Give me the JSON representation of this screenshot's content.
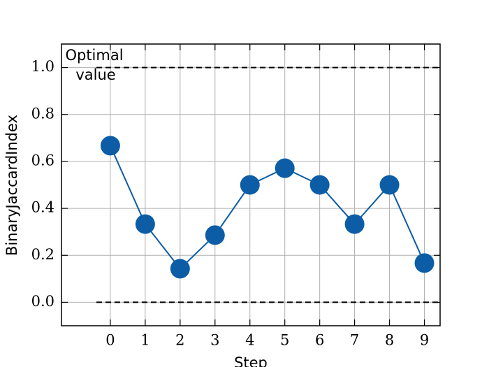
{
  "chart_data": {
    "type": "line",
    "x_label": "Step",
    "y_label": "BinaryJaccardIndex",
    "x": [
      0,
      1,
      2,
      3,
      4,
      5,
      6,
      7,
      8,
      9
    ],
    "series": [
      {
        "color": "#0C5DA5",
        "values": [
          0.667,
          0.333,
          0.143,
          0.286,
          0.5,
          0.571,
          0.5,
          0.333,
          0.5,
          0.167
        ]
      }
    ],
    "xlim": [
      -1.4,
      9.45
    ],
    "ylim": [
      -0.1,
      1.1
    ],
    "xticks": [
      0,
      1,
      2,
      3,
      4,
      5,
      6,
      7,
      8,
      9
    ],
    "yticks": [
      {
        "value": 0,
        "label": "0.0"
      },
      {
        "value": 0.2,
        "label": "0.2"
      },
      {
        "value": 0.4,
        "label": "0.4"
      },
      {
        "value": 0.6,
        "label": "0.6"
      },
      {
        "value": 0.8,
        "label": "0.8"
      },
      {
        "value": 1,
        "label": "1.0"
      }
    ],
    "grid": true,
    "hlines": [
      1,
      0
    ],
    "hline_xstart": -0.4,
    "annotation": [
      "Optimal",
      "value"
    ]
  }
}
